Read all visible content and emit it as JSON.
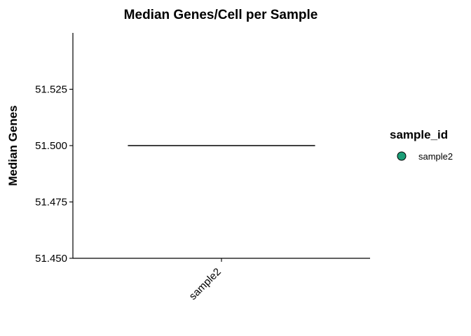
{
  "chart_data": {
    "type": "boxplot",
    "title": "Median Genes/Cell per Sample",
    "xlabel": "",
    "ylabel": "Median Genes",
    "categories": [
      "sample2"
    ],
    "series": [
      {
        "name": "sample2",
        "values": [
          51.5
        ],
        "color": "#1b9e77"
      }
    ],
    "ylim": [
      51.45,
      51.55
    ],
    "yticks": [
      51.45,
      51.475,
      51.5,
      51.525
    ],
    "ytick_labels": [
      "51.450",
      "51.475",
      "51.500",
      "51.525"
    ],
    "grid": false,
    "legend": {
      "title": "sample_id",
      "position": "right",
      "entries": [
        "sample2"
      ]
    }
  }
}
